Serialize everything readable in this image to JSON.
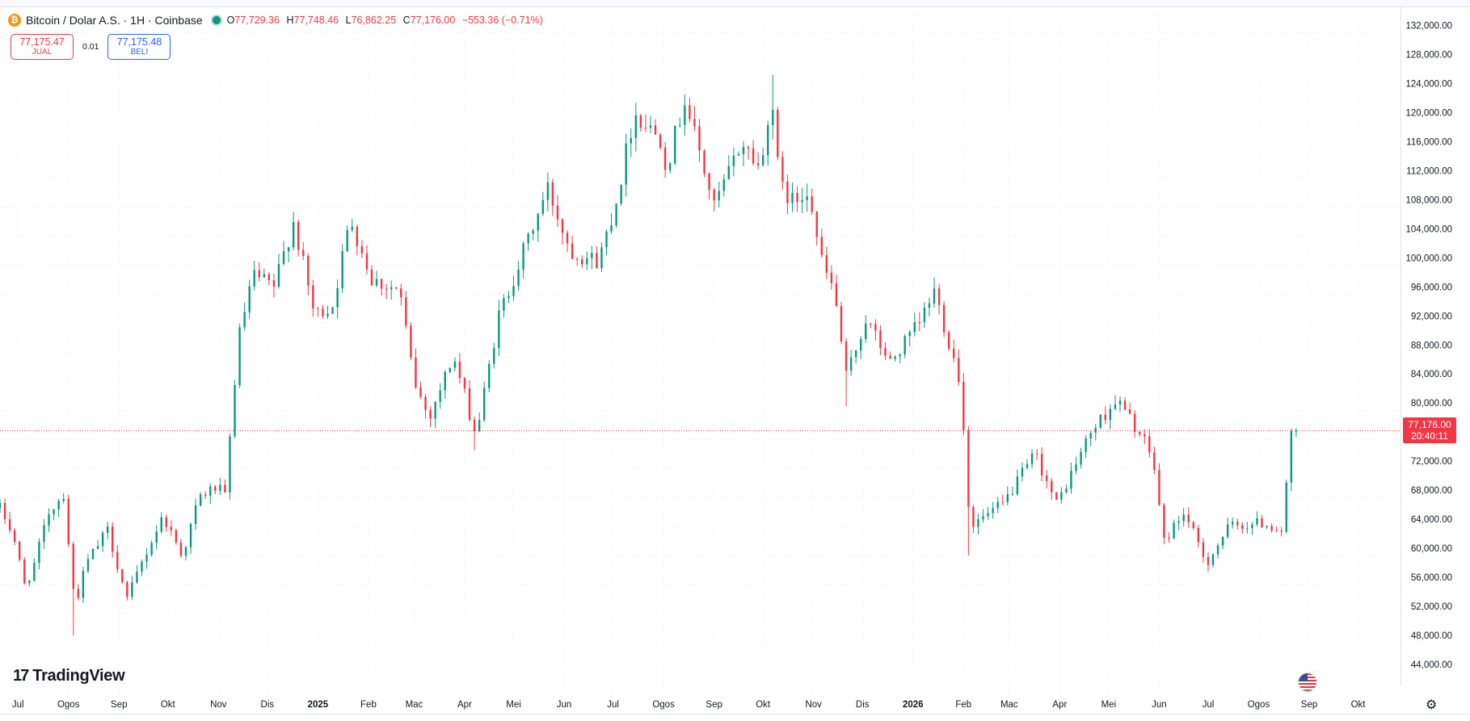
{
  "header": {
    "coin_icon": "bitcoin-icon",
    "coin_symbol": "₿",
    "title": "Bitcoin / Dolar A.S. · 1H · Coinbase",
    "ohlc": {
      "o_label": "O",
      "o": "77,729.36",
      "h_label": "H",
      "h": "77,748.46",
      "l_label": "L",
      "l": "76,862.25",
      "c_label": "C",
      "c": "77,176.00",
      "change": "−553.36 (−0.71%)"
    }
  },
  "trade": {
    "sell_price": "77,175.47",
    "sell_label": "JUAL",
    "spread": "0.01",
    "buy_price": "77,175.48",
    "buy_label": "BELI"
  },
  "logo": {
    "mark": "17",
    "text": "TradingView"
  },
  "price_tag": {
    "price": "77,176.00",
    "countdown": "20:40:11"
  },
  "colors": {
    "up": "#089981",
    "down": "#f23645",
    "grid": "#e8eaf0",
    "axis_text": "#131722",
    "price_line": "#f23645"
  },
  "chart_data": {
    "type": "candlestick",
    "title": "",
    "xlabel": "",
    "ylabel": "",
    "ylim": [
      41000,
      134500
    ],
    "y_ticks": [
      44000,
      48000,
      52000,
      56000,
      60000,
      64000,
      68000,
      72000,
      76000,
      80000,
      84000,
      88000,
      92000,
      96000,
      100000,
      104000,
      108000,
      112000,
      116000,
      120000,
      124000,
      128000,
      132000
    ],
    "y_tick_labels": [
      "44,000.00",
      "48,000.00",
      "52,000.00",
      "56,000.00",
      "60,000.00",
      "64,000.00",
      "68,000.00",
      "72,000.00",
      "76,000.00",
      "80,000.00",
      "84,000.00",
      "88,000.00",
      "92,000.00",
      "96,000.00",
      "100,000.00",
      "104,000.00",
      "108,000.00",
      "112,000.00",
      "116,000.00",
      "120,000.00",
      "124,000.00",
      "128,000.00",
      "132,000.00"
    ],
    "x_ticks": [
      {
        "label": "Jul",
        "date": "2024-07-01",
        "bold": false
      },
      {
        "label": "Ogos",
        "date": "2024-08-01",
        "bold": false
      },
      {
        "label": "Sep",
        "date": "2024-09-01",
        "bold": false
      },
      {
        "label": "Okt",
        "date": "2024-10-01",
        "bold": false
      },
      {
        "label": "Nov",
        "date": "2024-11-01",
        "bold": false
      },
      {
        "label": "Dis",
        "date": "2024-12-01",
        "bold": false
      },
      {
        "label": "2025",
        "date": "2025-01-01",
        "bold": true
      },
      {
        "label": "Feb",
        "date": "2025-02-01",
        "bold": false
      },
      {
        "label": "Mac",
        "date": "2025-03-01",
        "bold": false
      },
      {
        "label": "Apr",
        "date": "2025-04-01",
        "bold": false
      },
      {
        "label": "Mei",
        "date": "2025-05-01",
        "bold": false
      },
      {
        "label": "Jun",
        "date": "2025-06-01",
        "bold": false
      },
      {
        "label": "Jul",
        "date": "2025-07-01",
        "bold": false
      },
      {
        "label": "Ogos",
        "date": "2025-08-01",
        "bold": false
      },
      {
        "label": "Sep",
        "date": "2025-09-01",
        "bold": false
      },
      {
        "label": "Okt",
        "date": "2025-10-01",
        "bold": false
      },
      {
        "label": "Nov",
        "date": "2025-11-01",
        "bold": false
      },
      {
        "label": "Dis",
        "date": "2025-12-01",
        "bold": false
      },
      {
        "label": "2026",
        "date": "2026-01-01",
        "bold": true
      },
      {
        "label": "Feb",
        "date": "2026-02-01",
        "bold": false
      },
      {
        "label": "Mac",
        "date": "2026-03-01",
        "bold": false
      },
      {
        "label": "Apr",
        "date": "2026-04-01",
        "bold": false
      },
      {
        "label": "Mei",
        "date": "2026-05-01",
        "bold": false
      },
      {
        "label": "Jun",
        "date": "2026-06-01",
        "bold": false
      },
      {
        "label": "Jul",
        "date": "2026-07-01",
        "bold": false
      },
      {
        "label": "Ogos",
        "date": "2026-08-01",
        "bold": false
      },
      {
        "label": "Sep",
        "date": "2026-09-01",
        "bold": false
      },
      {
        "label": "Okt",
        "date": "2026-10-01",
        "bold": false
      }
    ],
    "x_range": [
      "2024-06-20",
      "2026-10-27"
    ],
    "bar_interval_days": 3,
    "current_price": 77176,
    "price_path": [
      [
        "2024-06-20",
        66500
      ],
      [
        "2024-06-28",
        63000
      ],
      [
        "2024-07-05",
        56000
      ],
      [
        "2024-07-10",
        58000
      ],
      [
        "2024-07-20",
        66000
      ],
      [
        "2024-07-29",
        68500
      ],
      [
        "2024-08-05",
        53000
      ],
      [
        "2024-08-12",
        59000
      ],
      [
        "2024-08-25",
        63500
      ],
      [
        "2024-09-06",
        54000
      ],
      [
        "2024-09-15",
        59000
      ],
      [
        "2024-09-28",
        65500
      ],
      [
        "2024-10-10",
        60000
      ],
      [
        "2024-10-20",
        68000
      ],
      [
        "2024-10-31",
        69500
      ],
      [
        "2024-11-05",
        68000
      ],
      [
        "2024-11-13",
        89500
      ],
      [
        "2024-11-22",
        98500
      ],
      [
        "2024-12-05",
        97000
      ],
      [
        "2024-12-17",
        106000
      ],
      [
        "2024-12-30",
        93000
      ],
      [
        "2025-01-10",
        94500
      ],
      [
        "2025-01-21",
        106500
      ],
      [
        "2025-02-03",
        98000
      ],
      [
        "2025-02-20",
        96500
      ],
      [
        "2025-03-01",
        84000
      ],
      [
        "2025-03-10",
        79000
      ],
      [
        "2025-03-25",
        87500
      ],
      [
        "2025-04-08",
        76500
      ],
      [
        "2025-04-22",
        93000
      ],
      [
        "2025-05-09",
        103000
      ],
      [
        "2025-05-22",
        110500
      ],
      [
        "2025-06-05",
        102000
      ],
      [
        "2025-06-22",
        100500
      ],
      [
        "2025-07-03",
        109000
      ],
      [
        "2025-07-14",
        121000
      ],
      [
        "2025-07-30",
        117500
      ],
      [
        "2025-08-03",
        113500
      ],
      [
        "2025-08-14",
        123000
      ],
      [
        "2025-09-01",
        108000
      ],
      [
        "2025-09-18",
        117000
      ],
      [
        "2025-09-30",
        113000
      ],
      [
        "2025-10-06",
        124500
      ],
      [
        "2025-10-11",
        111000
      ],
      [
        "2025-10-20",
        108500
      ],
      [
        "2025-10-29",
        111000
      ],
      [
        "2025-11-05",
        101000
      ],
      [
        "2025-11-14",
        96000
      ],
      [
        "2025-11-21",
        84500
      ],
      [
        "2025-12-03",
        92500
      ],
      [
        "2025-12-18",
        86500
      ],
      [
        "2026-01-05",
        92000
      ],
      [
        "2026-01-14",
        96500
      ],
      [
        "2026-01-30",
        84000
      ],
      [
        "2026-02-05",
        64000
      ],
      [
        "2026-02-25",
        67000
      ],
      [
        "2026-03-17",
        74000
      ],
      [
        "2026-03-30",
        67000
      ],
      [
        "2026-04-20",
        77000
      ],
      [
        "2026-05-06",
        81500
      ],
      [
        "2026-05-18",
        77500
      ],
      [
        "2026-05-28",
        73500
      ],
      [
        "2026-06-04",
        62000
      ],
      [
        "2026-06-16",
        66000
      ],
      [
        "2026-06-30",
        59000
      ],
      [
        "2026-07-14",
        64000
      ],
      [
        "2026-08-03",
        64500
      ],
      [
        "2026-08-15",
        63500
      ],
      [
        "2026-08-20",
        74000
      ],
      [
        "2026-08-22",
        78500
      ],
      [
        "2026-08-25",
        77176
      ]
    ],
    "extremes": [
      [
        "2024-08-05",
        49000
      ],
      [
        "2025-10-06",
        126200
      ],
      [
        "2026-02-05",
        60000
      ],
      [
        "2025-04-07",
        74500
      ],
      [
        "2025-11-21",
        80600
      ],
      [
        "2026-06-30",
        57800
      ]
    ]
  }
}
